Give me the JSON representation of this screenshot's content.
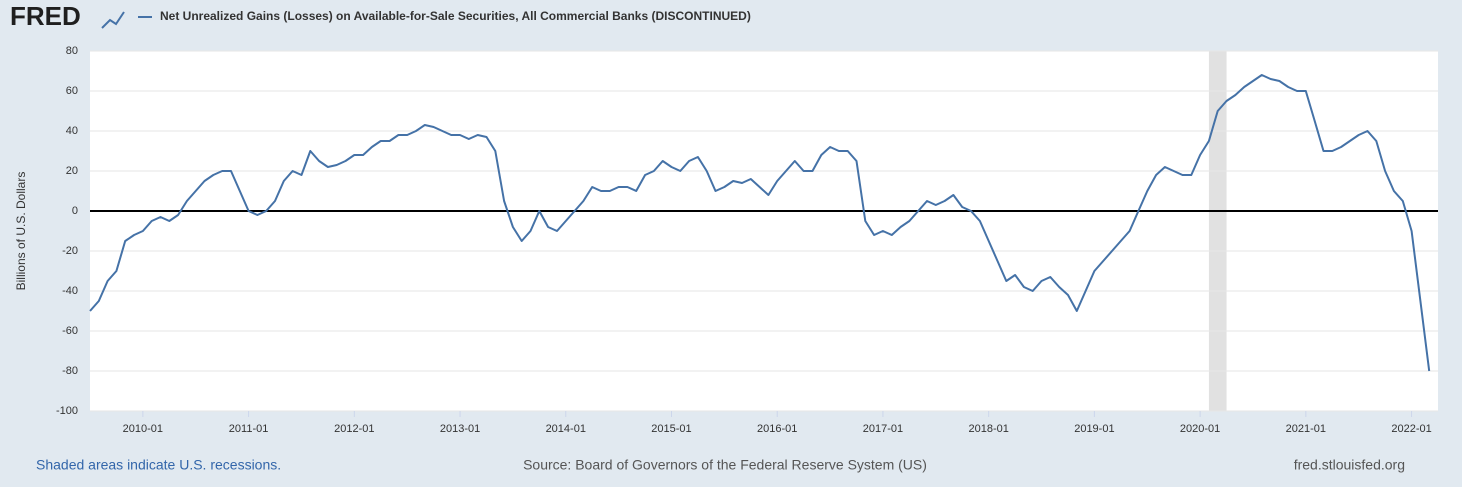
{
  "logo": "FRED",
  "chart_data": {
    "type": "line",
    "title": "Net Unrealized Gains (Losses) on Available-for-Sale Securities, All Commercial Banks (DISCONTINUED)",
    "y_label": "Billions of U.S. Dollars",
    "recessions": [
      {
        "start": "2020-02",
        "end": "2020-04"
      }
    ],
    "recession_note": "Shaded areas indicate U.S. recessions.",
    "source": "Source: Board of Governors of the Federal Reserve System (US)",
    "site": "fred.stlouisfed.org",
    "xlim": [
      "2009-07",
      "2022-04"
    ],
    "xticks": [
      "2010-01",
      "2011-01",
      "2012-01",
      "2013-01",
      "2014-01",
      "2015-01",
      "2016-01",
      "2017-01",
      "2018-01",
      "2019-01",
      "2020-01",
      "2021-01",
      "2022-01"
    ],
    "ylim": [
      -100,
      80
    ],
    "yticks": [
      -100,
      -80,
      -60,
      -40,
      -20,
      0,
      20,
      40,
      60,
      80
    ],
    "grid": true,
    "zero_line": 0,
    "x": [
      "2009-07",
      "2009-08",
      "2009-09",
      "2009-10",
      "2009-11",
      "2009-12",
      "2010-01",
      "2010-02",
      "2010-03",
      "2010-04",
      "2010-05",
      "2010-06",
      "2010-07",
      "2010-08",
      "2010-09",
      "2010-10",
      "2010-11",
      "2010-12",
      "2011-01",
      "2011-02",
      "2011-03",
      "2011-04",
      "2011-05",
      "2011-06",
      "2011-07",
      "2011-08",
      "2011-09",
      "2011-10",
      "2011-11",
      "2011-12",
      "2012-01",
      "2012-02",
      "2012-03",
      "2012-04",
      "2012-05",
      "2012-06",
      "2012-07",
      "2012-08",
      "2012-09",
      "2012-10",
      "2012-11",
      "2012-12",
      "2013-01",
      "2013-02",
      "2013-03",
      "2013-04",
      "2013-05",
      "2013-06",
      "2013-07",
      "2013-08",
      "2013-09",
      "2013-10",
      "2013-11",
      "2013-12",
      "2014-01",
      "2014-02",
      "2014-03",
      "2014-04",
      "2014-05",
      "2014-06",
      "2014-07",
      "2014-08",
      "2014-09",
      "2014-10",
      "2014-11",
      "2014-12",
      "2015-01",
      "2015-02",
      "2015-03",
      "2015-04",
      "2015-05",
      "2015-06",
      "2015-07",
      "2015-08",
      "2015-09",
      "2015-10",
      "2015-11",
      "2015-12",
      "2016-01",
      "2016-02",
      "2016-03",
      "2016-04",
      "2016-05",
      "2016-06",
      "2016-07",
      "2016-08",
      "2016-09",
      "2016-10",
      "2016-11",
      "2016-12",
      "2017-01",
      "2017-02",
      "2017-03",
      "2017-04",
      "2017-05",
      "2017-06",
      "2017-07",
      "2017-08",
      "2017-09",
      "2017-10",
      "2017-11",
      "2017-12",
      "2018-01",
      "2018-02",
      "2018-03",
      "2018-04",
      "2018-05",
      "2018-06",
      "2018-07",
      "2018-08",
      "2018-09",
      "2018-10",
      "2018-11",
      "2018-12",
      "2019-01",
      "2019-02",
      "2019-03",
      "2019-04",
      "2019-05",
      "2019-06",
      "2019-07",
      "2019-08",
      "2019-09",
      "2019-10",
      "2019-11",
      "2019-12",
      "2020-01",
      "2020-02",
      "2020-03",
      "2020-04",
      "2020-05",
      "2020-06",
      "2020-07",
      "2020-08",
      "2020-09",
      "2020-10",
      "2020-11",
      "2020-12",
      "2021-01",
      "2021-02",
      "2021-03",
      "2021-04",
      "2021-05",
      "2021-06",
      "2021-07",
      "2021-08",
      "2021-09",
      "2021-10",
      "2021-11",
      "2021-12",
      "2022-01",
      "2022-02",
      "2022-03"
    ],
    "series": [
      {
        "name": "Net Unrealized Gains (Losses) on Available-for-Sale Securities, All Commercial Banks (DISCONTINUED)",
        "color": "#4572a7",
        "values": [
          -50,
          -45,
          -35,
          -30,
          -15,
          -12,
          -10,
          -5,
          -3,
          -5,
          -2,
          5,
          10,
          15,
          18,
          20,
          20,
          10,
          0,
          -2,
          0,
          5,
          15,
          20,
          18,
          30,
          25,
          22,
          23,
          25,
          28,
          28,
          32,
          35,
          35,
          38,
          38,
          40,
          43,
          42,
          40,
          38,
          38,
          36,
          38,
          37,
          30,
          5,
          -8,
          -15,
          -10,
          0,
          -8,
          -10,
          -5,
          0,
          5,
          12,
          10,
          10,
          12,
          12,
          10,
          18,
          20,
          25,
          22,
          20,
          25,
          27,
          20,
          10,
          12,
          15,
          14,
          16,
          12,
          8,
          15,
          20,
          25,
          20,
          20,
          28,
          32,
          30,
          30,
          25,
          -5,
          -12,
          -10,
          -12,
          -8,
          -5,
          0,
          5,
          3,
          5,
          8,
          2,
          0,
          -5,
          -15,
          -25,
          -35,
          -32,
          -38,
          -40,
          -35,
          -33,
          -38,
          -42,
          -50,
          -40,
          -30,
          -25,
          -20,
          -15,
          -10,
          0,
          10,
          18,
          22,
          20,
          18,
          18,
          28,
          35,
          50,
          55,
          58,
          62,
          65,
          68,
          66,
          65,
          62,
          60,
          60,
          45,
          30,
          30,
          32,
          35,
          38,
          40,
          35,
          20,
          10,
          5,
          -10,
          -45,
          -80
        ]
      }
    ]
  }
}
